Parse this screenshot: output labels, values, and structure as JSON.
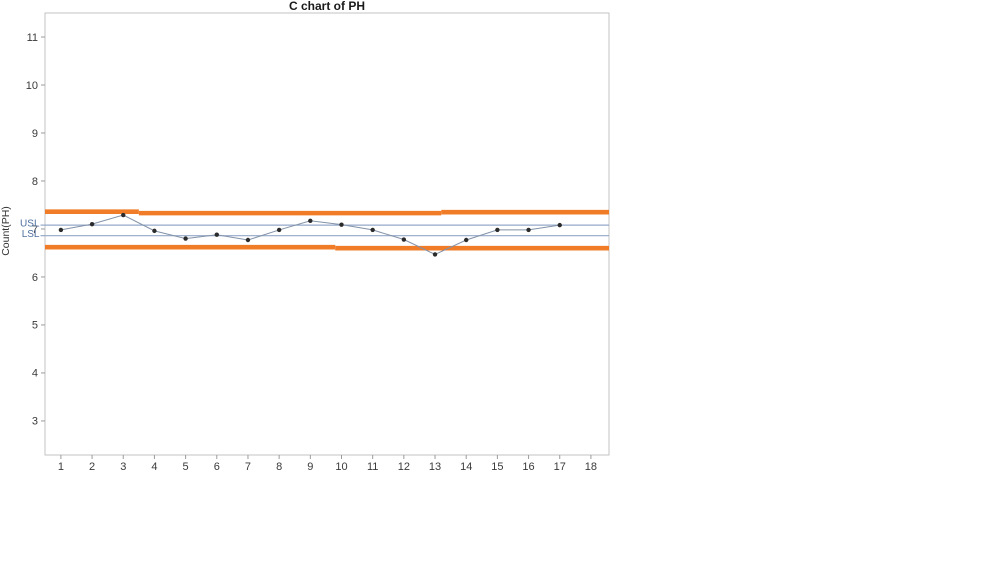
{
  "page": {
    "background_color": "#ffffff"
  },
  "chart_data": {
    "type": "line",
    "chart_kind": "control-chart",
    "title": "C chart of PH",
    "ylabel": "Count(PH)",
    "xlabel": "",
    "x": [
      1,
      2,
      3,
      4,
      5,
      6,
      7,
      8,
      9,
      10,
      11,
      12,
      13,
      14,
      15,
      16,
      17
    ],
    "values": [
      6.98,
      7.1,
      7.29,
      6.96,
      6.8,
      6.88,
      6.77,
      6.98,
      7.17,
      7.09,
      6.98,
      6.78,
      6.47,
      6.77,
      6.98,
      6.98,
      7.08
    ],
    "x_ticks": [
      "1",
      "2",
      "3",
      "4",
      "5",
      "6",
      "7",
      "8",
      "9",
      "10",
      "11",
      "12",
      "13",
      "14",
      "15",
      "16",
      "17",
      "18"
    ],
    "y_ticks": [
      "3",
      "4",
      "5",
      "6",
      "7",
      "8",
      "9",
      "10",
      "11"
    ],
    "xlim": [
      0.49,
      18.58
    ],
    "ylim": [
      2.29,
      11.5
    ],
    "grid": false,
    "legend": "none",
    "marker": "circle",
    "control_limits": {
      "ucl": {
        "name": "UCL",
        "color": "#f07c28",
        "segments": [
          {
            "x1": 0.49,
            "x2": 3.5,
            "value": 7.36
          },
          {
            "x1": 3.5,
            "x2": 13.2,
            "value": 7.33
          },
          {
            "x1": 13.2,
            "x2": 18.58,
            "value": 7.35
          }
        ]
      },
      "lcl": {
        "name": "LCL",
        "color": "#f07c28",
        "segments": [
          {
            "x1": 0.49,
            "x2": 9.8,
            "value": 6.62
          },
          {
            "x1": 9.8,
            "x2": 18.58,
            "value": 6.6
          }
        ]
      }
    },
    "spec_limits": {
      "usl": {
        "label": "USL",
        "value": 7.08
      },
      "lsl": {
        "label": "LSL",
        "value": 6.86
      }
    },
    "colors": {
      "series_line": "#8292a8",
      "marker": "#2b2b2b",
      "spec_line": "#94a8c8",
      "spec_label": "#4d6f9f",
      "control_limit": "#f07c28",
      "axis_border": "#c3c3c3",
      "tick_mark": "#9b9b9b",
      "tick_label": "#3a3a3a",
      "title": "#1a1a1a"
    }
  }
}
